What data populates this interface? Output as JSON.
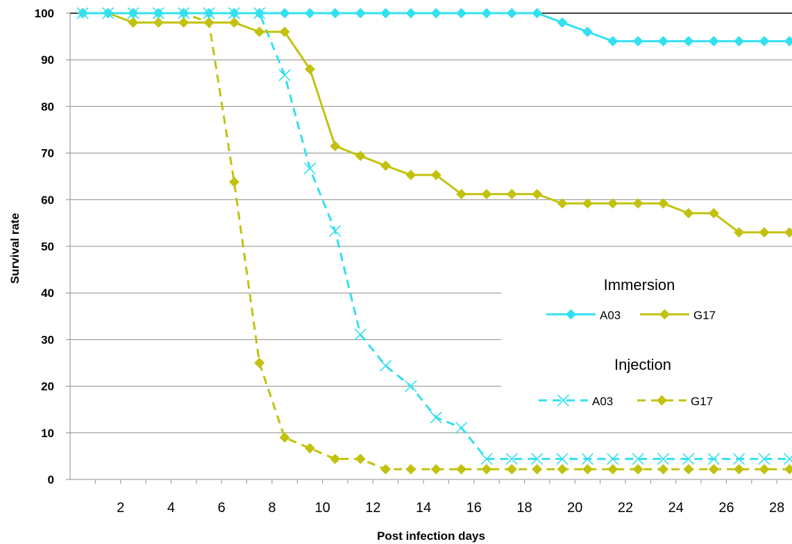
{
  "chart_data": {
    "type": "line",
    "xlabel": "Post infection days",
    "ylabel": "Survival rate",
    "xlim": [
      0,
      28.6
    ],
    "ylim": [
      0,
      100
    ],
    "x_ticks": [
      2,
      4,
      6,
      8,
      10,
      12,
      14,
      16,
      18,
      20,
      22,
      24,
      26,
      28
    ],
    "y_ticks": [
      0,
      10,
      20,
      30,
      40,
      50,
      60,
      70,
      80,
      90,
      100
    ],
    "grid": "horizontal",
    "x": [
      0.5,
      1.5,
      2.5,
      3.5,
      4.5,
      5.5,
      6.5,
      7.5,
      8.5,
      9.5,
      10.5,
      11.5,
      12.5,
      13.5,
      14.5,
      15.5,
      16.5,
      17.5,
      18.5,
      19.5,
      20.5,
      21.5,
      22.5,
      23.5,
      24.5,
      25.5,
      26.5,
      27.5,
      28.5
    ],
    "series": [
      {
        "group": "Immersion",
        "name": "A03",
        "color": "#33e0f0",
        "style": "solid",
        "marker": "diamond",
        "values": [
          100,
          100,
          100,
          100,
          100,
          100,
          100,
          100,
          100,
          100,
          100,
          100,
          100,
          100,
          100,
          100,
          100,
          100,
          100,
          98,
          96,
          94,
          94,
          94,
          94,
          94,
          94,
          94,
          94
        ]
      },
      {
        "group": "Immersion",
        "name": "G17",
        "color": "#c2c20e",
        "style": "solid",
        "marker": "diamond",
        "values": [
          100,
          100,
          98,
          98,
          98,
          98,
          98,
          96,
          96,
          88,
          71.5,
          69.4,
          67.3,
          65.3,
          65.3,
          61.2,
          61.2,
          61.2,
          61.2,
          59.2,
          59.2,
          59.2,
          59.2,
          59.2,
          57.1,
          57.1,
          53,
          53,
          53
        ]
      },
      {
        "group": "Injection",
        "name": "A03",
        "color": "#33e0f0",
        "style": "dashed",
        "marker": "x",
        "values": [
          100,
          100,
          100,
          100,
          100,
          100,
          100,
          100,
          86.7,
          66.7,
          53.3,
          31.1,
          24.4,
          20,
          13.3,
          11.1,
          4.4,
          4.4,
          4.4,
          4.4,
          4.4,
          4.4,
          4.4,
          4.4,
          4.4,
          4.4,
          4.4,
          4.4,
          4.4
        ]
      },
      {
        "group": "Injection",
        "name": "G17",
        "color": "#c2c20e",
        "style": "dashed",
        "marker": "diamond",
        "values": [
          100,
          100,
          100,
          100,
          100,
          98,
          63.8,
          25,
          9,
          6.7,
          4.4,
          4.4,
          2.2,
          2.2,
          2.2,
          2.2,
          2.2,
          2.2,
          2.2,
          2.2,
          2.2,
          2.2,
          2.2,
          2.2,
          2.2,
          2.2,
          2.2,
          2.2,
          2.2
        ]
      }
    ],
    "legend": {
      "placement": "center-right",
      "groups": [
        {
          "title": "Immersion",
          "entries": [
            "A03",
            "G17"
          ]
        },
        {
          "title": "Injection",
          "entries": [
            "A03",
            "G17"
          ]
        }
      ]
    }
  }
}
